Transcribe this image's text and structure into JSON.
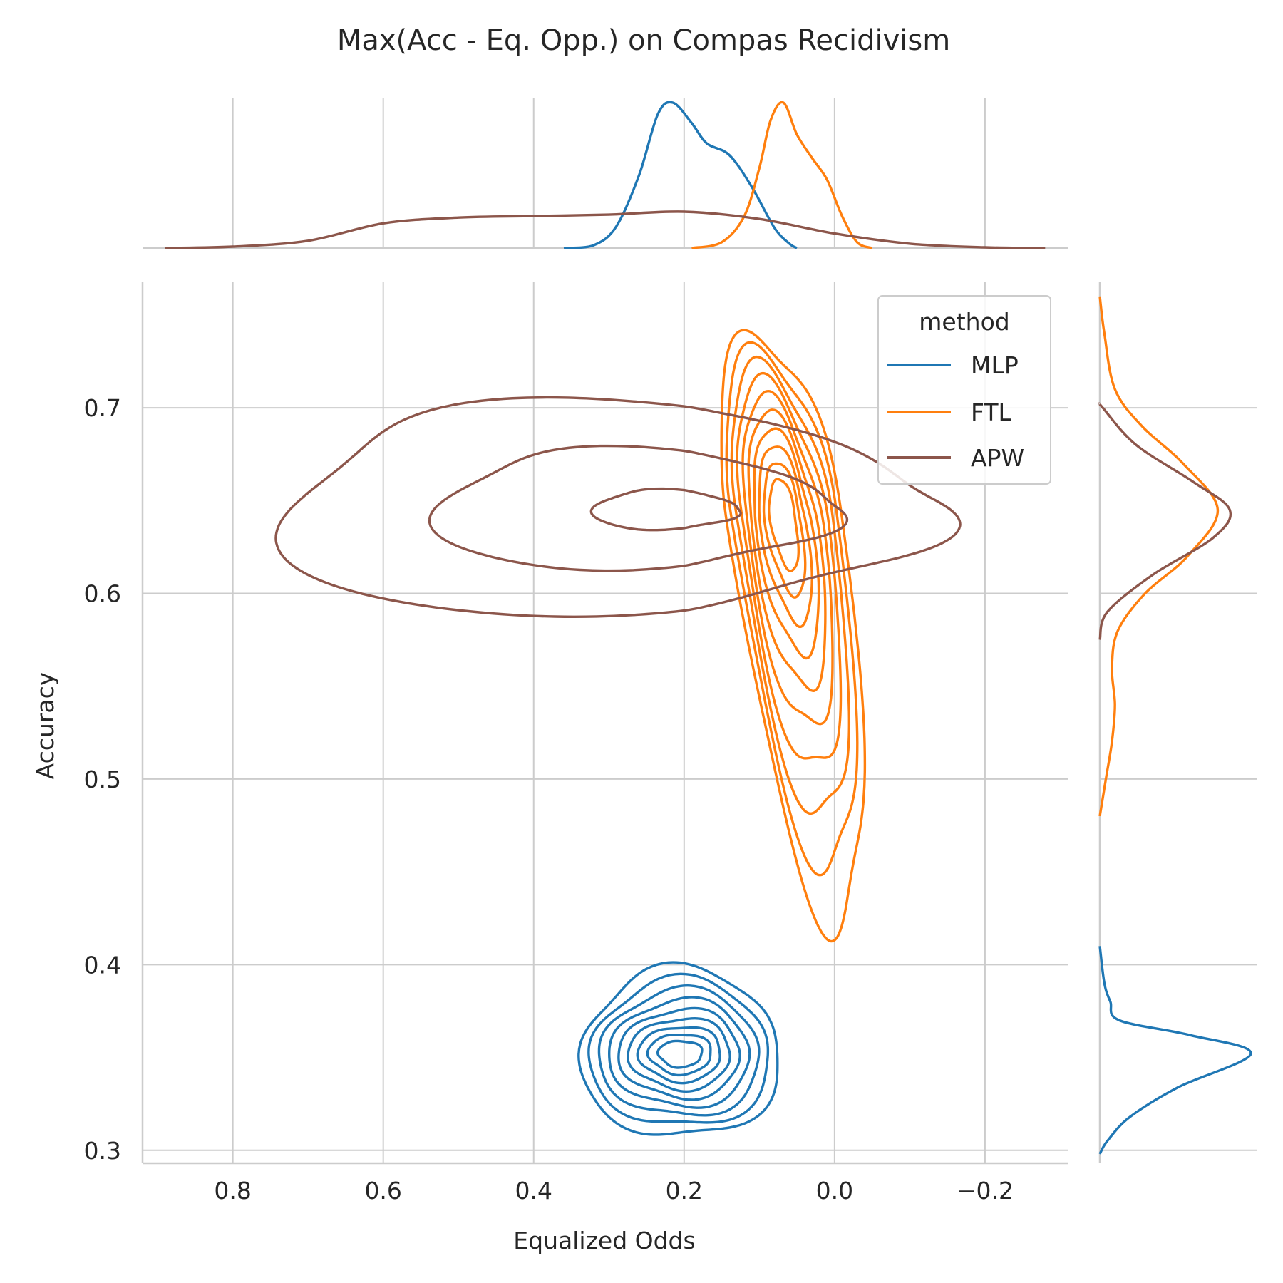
{
  "chart_data": {
    "type": "kde_jointplot",
    "title": "Max(Acc - Eq. Opp.) on Compas Recidivism",
    "xlabel": "Equalized Odds",
    "ylabel": "Accuracy",
    "x_axis_inverted": true,
    "xlim": [
      0.92,
      -0.31
    ],
    "ylim": [
      0.293,
      0.768
    ],
    "x_ticks": [
      0.8,
      0.6,
      0.4,
      0.2,
      0.0,
      -0.2
    ],
    "x_tick_labels": [
      "0.8",
      "0.6",
      "0.4",
      "0.2",
      "0.0",
      "−0.2"
    ],
    "y_ticks": [
      0.3,
      0.4,
      0.5,
      0.6,
      0.7
    ],
    "y_tick_labels": [
      "0.3",
      "0.4",
      "0.5",
      "0.6",
      "0.7"
    ],
    "grid": true,
    "legend": {
      "title": "method",
      "position": "top-right",
      "entries": [
        "MLP",
        "FTL",
        "APW"
      ]
    },
    "series": [
      {
        "name": "MLP",
        "color": "#1f77b4",
        "center": {
          "x": 0.205,
          "y": 0.352
        },
        "spread": {
          "x": 0.06,
          "y": 0.013
        },
        "contour_levels": 9,
        "x_marginal": [
          [
            0.36,
            0
          ],
          [
            0.32,
            0.02
          ],
          [
            0.29,
            0.15
          ],
          [
            0.26,
            0.5
          ],
          [
            0.235,
            0.92
          ],
          [
            0.215,
            1.0
          ],
          [
            0.19,
            0.86
          ],
          [
            0.17,
            0.72
          ],
          [
            0.14,
            0.64
          ],
          [
            0.11,
            0.42
          ],
          [
            0.08,
            0.14
          ],
          [
            0.06,
            0.03
          ],
          [
            0.05,
            0
          ]
        ],
        "y_marginal": [
          [
            0.298,
            0
          ],
          [
            0.305,
            0.05
          ],
          [
            0.318,
            0.2
          ],
          [
            0.334,
            0.52
          ],
          [
            0.352,
            1.0
          ],
          [
            0.362,
            0.6
          ],
          [
            0.37,
            0.13
          ],
          [
            0.38,
            0.07
          ],
          [
            0.39,
            0.03
          ],
          [
            0.41,
            0
          ]
        ]
      },
      {
        "name": "FTL",
        "color": "#ff7f0e",
        "center": {
          "x": 0.068,
          "y": 0.64
        },
        "spread": {
          "x": 0.035,
          "y": 0.045
        },
        "contour_levels": 10,
        "x_marginal": [
          [
            0.19,
            0
          ],
          [
            0.15,
            0.04
          ],
          [
            0.12,
            0.22
          ],
          [
            0.1,
            0.55
          ],
          [
            0.085,
            0.88
          ],
          [
            0.068,
            1.0
          ],
          [
            0.05,
            0.78
          ],
          [
            0.03,
            0.62
          ],
          [
            0.01,
            0.47
          ],
          [
            -0.01,
            0.22
          ],
          [
            -0.03,
            0.04
          ],
          [
            -0.05,
            0
          ]
        ],
        "y_marginal": [
          [
            0.48,
            0
          ],
          [
            0.5,
            0.04
          ],
          [
            0.52,
            0.08
          ],
          [
            0.54,
            0.1
          ],
          [
            0.56,
            0.08
          ],
          [
            0.58,
            0.12
          ],
          [
            0.6,
            0.3
          ],
          [
            0.62,
            0.58
          ],
          [
            0.645,
            0.78
          ],
          [
            0.67,
            0.55
          ],
          [
            0.69,
            0.28
          ],
          [
            0.71,
            0.1
          ],
          [
            0.74,
            0.03
          ],
          [
            0.76,
            0
          ]
        ]
      },
      {
        "name": "APW",
        "color": "#8c564b",
        "center": {
          "x": 0.2,
          "y": 0.645
        },
        "spread": {
          "x": 0.2,
          "y": 0.02
        },
        "contour_levels": 3,
        "x_marginal": [
          [
            0.89,
            0
          ],
          [
            0.8,
            0.01
          ],
          [
            0.7,
            0.05
          ],
          [
            0.6,
            0.17
          ],
          [
            0.5,
            0.21
          ],
          [
            0.4,
            0.22
          ],
          [
            0.3,
            0.23
          ],
          [
            0.2,
            0.25
          ],
          [
            0.1,
            0.2
          ],
          [
            0.0,
            0.1
          ],
          [
            -0.1,
            0.03
          ],
          [
            -0.2,
            0.005
          ],
          [
            -0.28,
            0
          ]
        ],
        "y_marginal": [
          [
            0.575,
            0
          ],
          [
            0.59,
            0.05
          ],
          [
            0.61,
            0.35
          ],
          [
            0.63,
            0.75
          ],
          [
            0.645,
            0.86
          ],
          [
            0.66,
            0.62
          ],
          [
            0.68,
            0.24
          ],
          [
            0.7,
            0.02
          ],
          [
            0.702,
            0
          ]
        ]
      }
    ]
  }
}
